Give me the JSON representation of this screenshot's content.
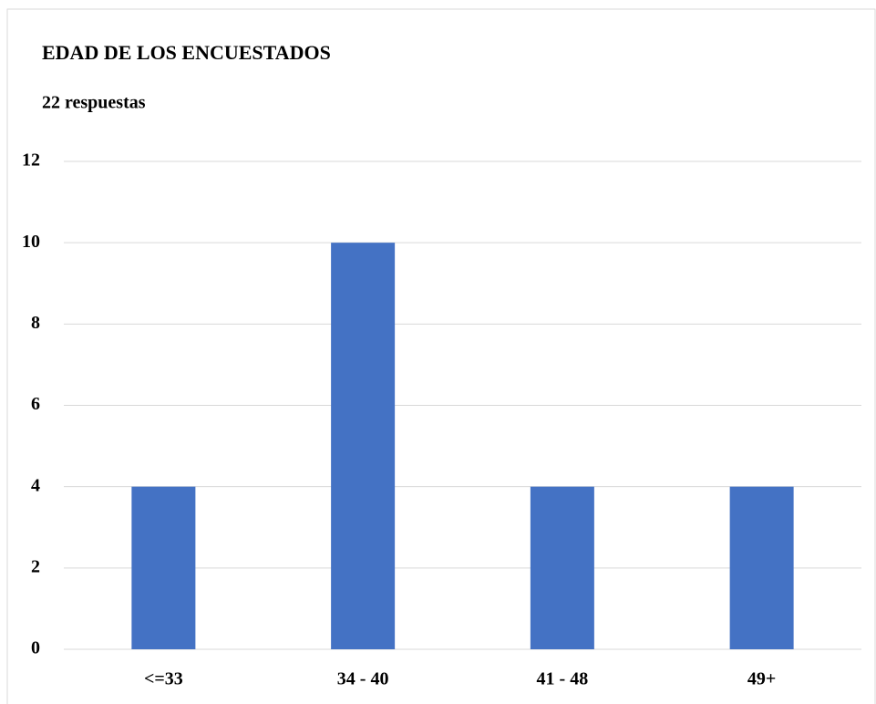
{
  "chart_data": {
    "type": "bar",
    "title": "EDAD DE LOS ENCUESTADOS",
    "subtitle": "22 respuestas",
    "categories": [
      "<=33",
      "34 - 40",
      "41 - 48",
      "49+"
    ],
    "values": [
      4,
      10,
      4,
      4
    ],
    "color": "#4472c4",
    "ylim": [
      0,
      12
    ],
    "yticks": [
      0,
      2,
      4,
      6,
      8,
      10,
      12
    ],
    "grid": true
  }
}
